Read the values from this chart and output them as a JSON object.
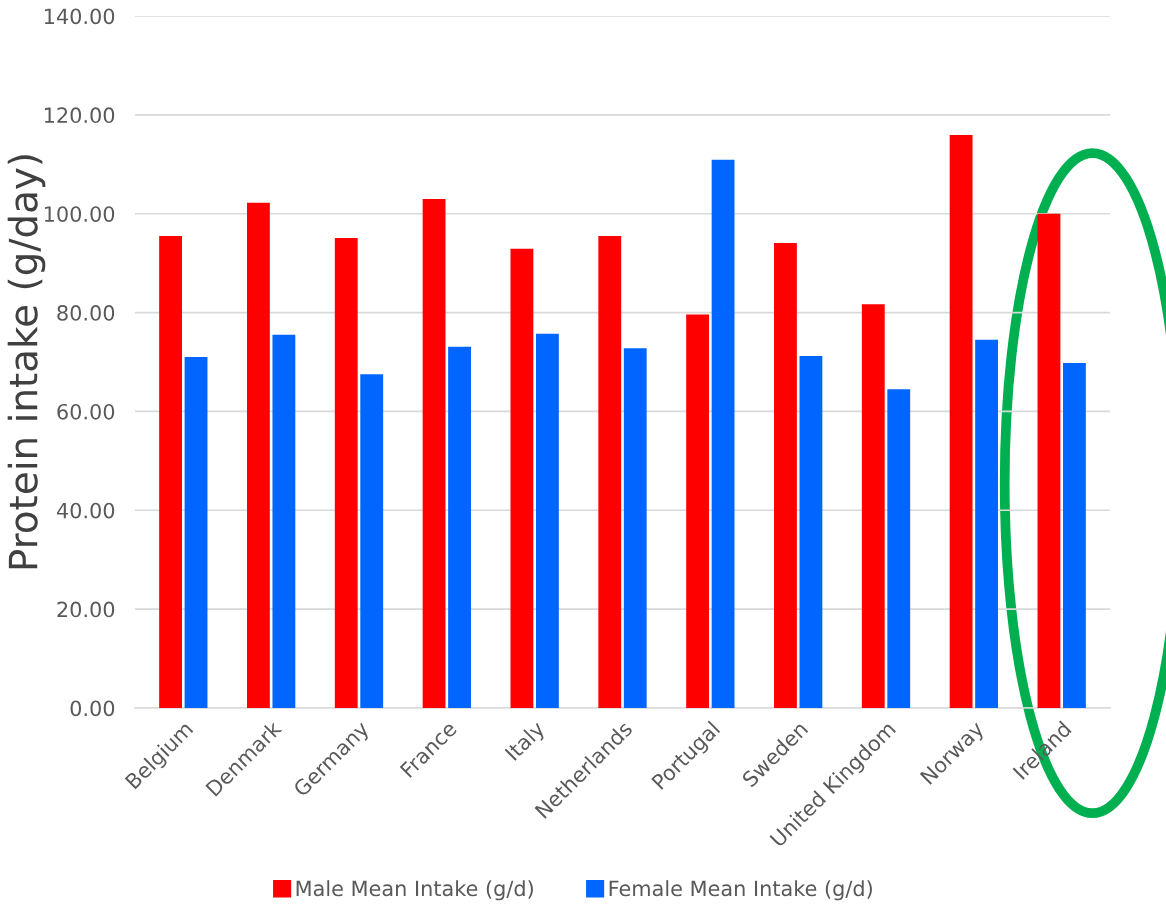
{
  "chart_data": {
    "type": "bar",
    "ylabel": "Protein intake (g/day)",
    "categories": [
      "Belgium",
      "Denmark",
      "Germany",
      "France",
      "Italy",
      "Netherlands",
      "Portugal",
      "Sweden",
      "United Kingdom",
      "Norway",
      "Ireland"
    ],
    "series": [
      {
        "name": "Male Mean Intake (g/d)",
        "color": "#ff0000",
        "values": [
          95.5,
          102.2,
          95.1,
          103.0,
          92.9,
          95.5,
          79.6,
          94.1,
          81.7,
          115.9,
          100.0
        ]
      },
      {
        "name": "Female Mean Intake (g/d)",
        "color": "#0066ff",
        "values": [
          71.0,
          75.5,
          67.5,
          73.1,
          75.7,
          72.8,
          110.9,
          71.2,
          64.5,
          74.5,
          69.8
        ]
      }
    ],
    "ylim": [
      0,
      140
    ],
    "yticks": [
      {
        "value": 0,
        "label": "0.00"
      },
      {
        "value": 20,
        "label": "20.00"
      },
      {
        "value": 40,
        "label": "40.00"
      },
      {
        "value": 60,
        "label": "60.00"
      },
      {
        "value": 80,
        "label": "80.00"
      },
      {
        "value": 100,
        "label": "100.00"
      },
      {
        "value": 120,
        "label": "120.00"
      },
      {
        "value": 140,
        "label": "140.00"
      }
    ],
    "grid": "y",
    "legend": "bottom"
  }
}
